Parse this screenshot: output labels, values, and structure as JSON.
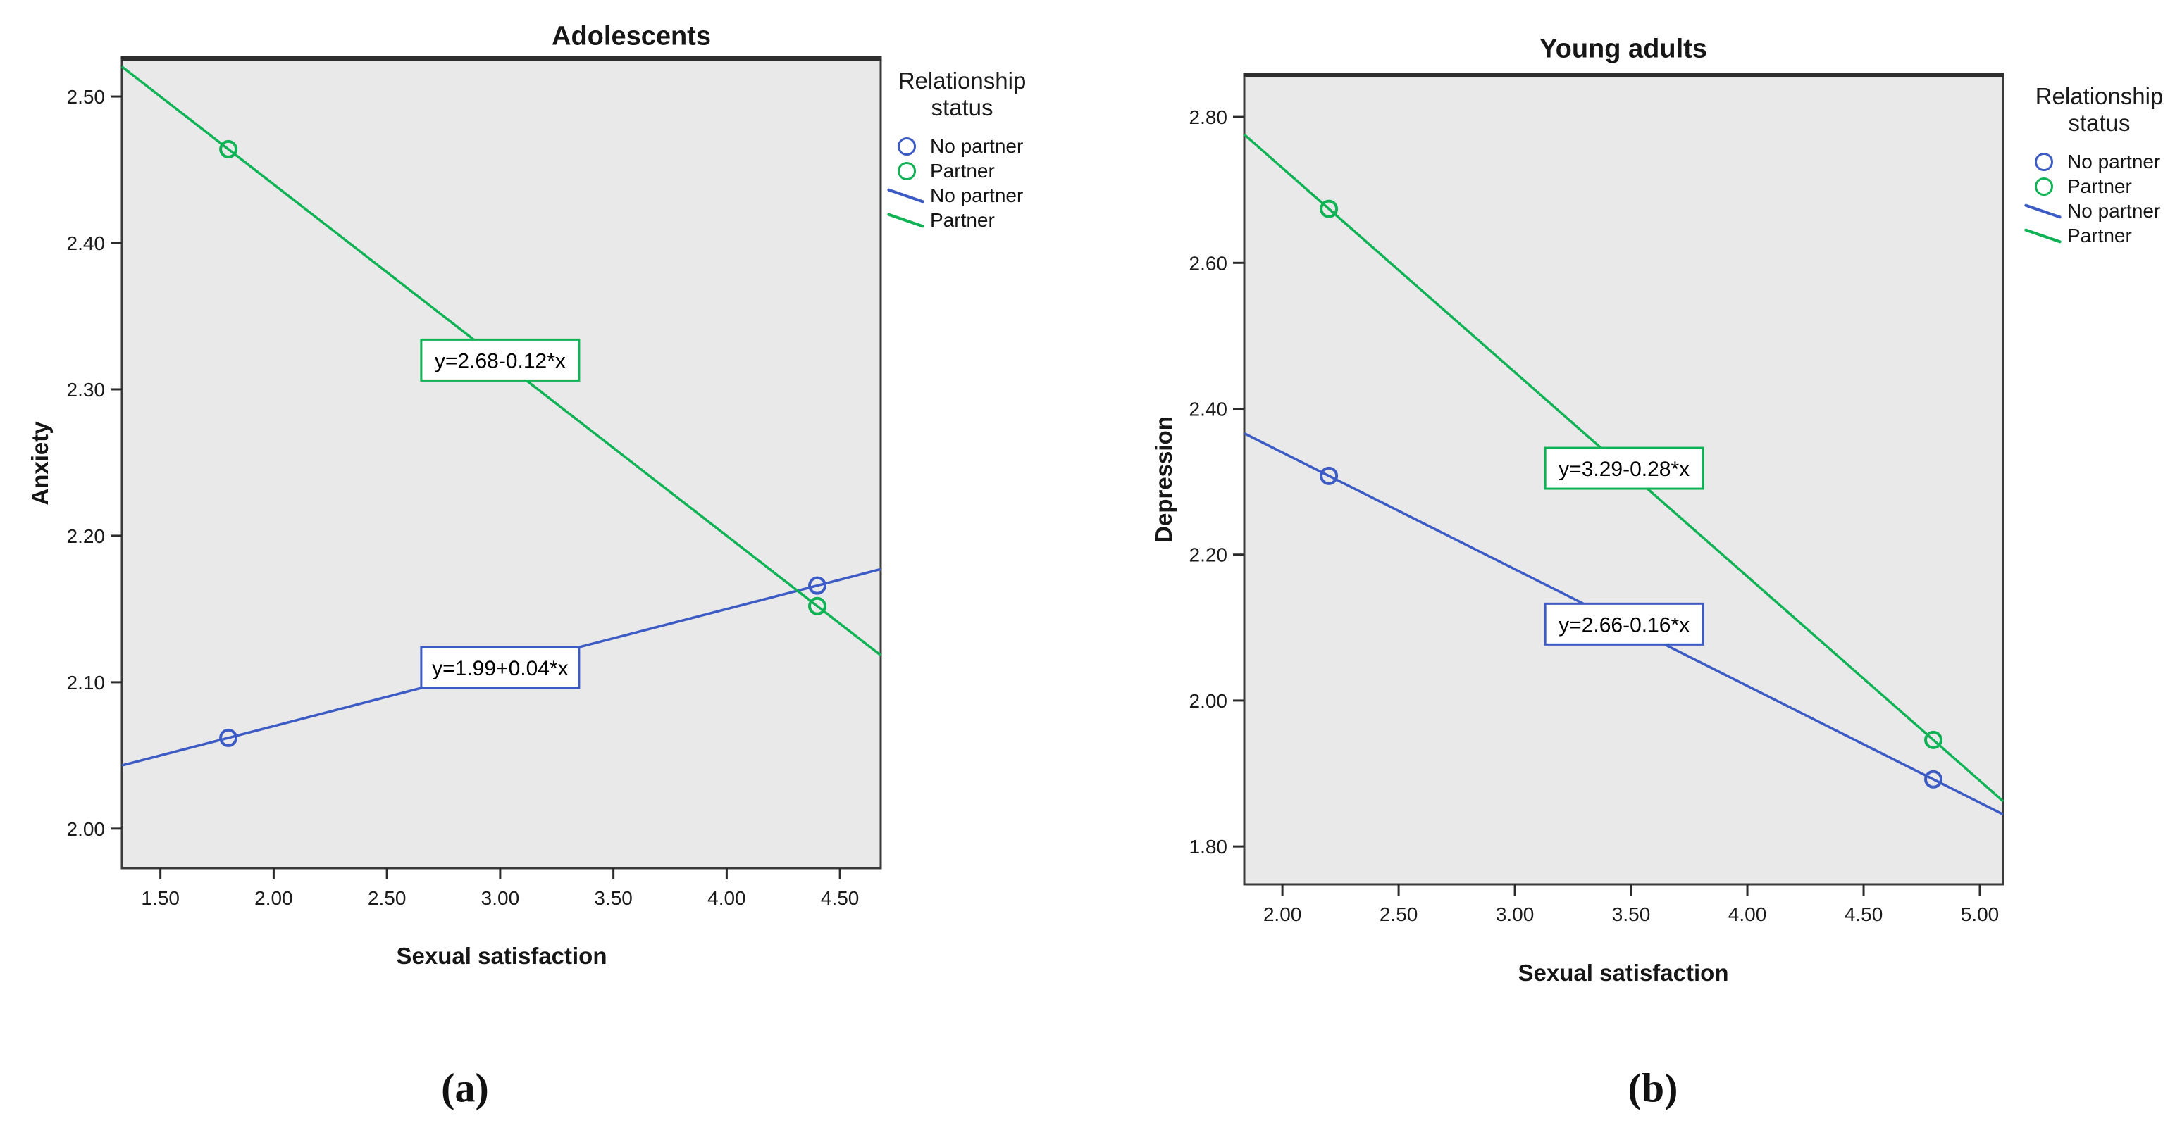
{
  "colors": {
    "blue": "#3C5BC4",
    "green": "#0FB254",
    "frame": "#3b3b3b",
    "frame_top": "#2e2e2e",
    "plot_bg": "#e9e9e9",
    "tick": "#2b2b2b",
    "equation_box_bg": "#ffffff"
  },
  "chart_data": [
    {
      "type": "line",
      "title": "Adolescents",
      "panel_label": "(a)",
      "xlabel": "Sexual satisfaction",
      "ylabel": "Anxiety",
      "x_range": [
        1.33,
        4.68
      ],
      "y_range": [
        1.973,
        2.526
      ],
      "grid": false,
      "x_ticks": [
        {
          "value": 1.5,
          "label": "1.50"
        },
        {
          "value": 2.0,
          "label": "2.00"
        },
        {
          "value": 2.5,
          "label": "2.50"
        },
        {
          "value": 3.0,
          "label": "3.00"
        },
        {
          "value": 3.5,
          "label": "3.50"
        },
        {
          "value": 4.0,
          "label": "4.00"
        },
        {
          "value": 4.5,
          "label": "4.50"
        }
      ],
      "y_ticks": [
        {
          "value": 2.0,
          "label": "2.00"
        },
        {
          "value": 2.1,
          "label": "2.10"
        },
        {
          "value": 2.2,
          "label": "2.20"
        },
        {
          "value": 2.3,
          "label": "2.30"
        },
        {
          "value": 2.4,
          "label": "2.40"
        },
        {
          "value": 2.5,
          "label": "2.50"
        }
      ],
      "series": [
        {
          "name": "No partner",
          "color": "blue",
          "equation_label": "y=1.99+0.04*x",
          "intercept": 1.99,
          "slope": 0.04,
          "equation_label_x": 3.0,
          "points": [
            {
              "x": 1.8,
              "y": 2.062
            },
            {
              "x": 4.4,
              "y": 2.166
            }
          ]
        },
        {
          "name": "Partner",
          "color": "green",
          "equation_label": "y=2.68-0.12*x",
          "intercept": 2.68,
          "slope": -0.12,
          "equation_label_x": 3.0,
          "points": [
            {
              "x": 1.8,
              "y": 2.464
            },
            {
              "x": 4.4,
              "y": 2.152
            }
          ]
        }
      ],
      "legend": {
        "title_lines": [
          "Relationship",
          "status"
        ],
        "items": [
          {
            "type": "circle",
            "color": "blue",
            "label": "No partner"
          },
          {
            "type": "circle",
            "color": "green",
            "label": "Partner"
          },
          {
            "type": "line",
            "color": "blue",
            "label": "No partner"
          },
          {
            "type": "line",
            "color": "green",
            "label": "Partner"
          }
        ]
      }
    },
    {
      "type": "line",
      "title": "Young adults",
      "panel_label": "(b)",
      "xlabel": "Sexual satisfaction",
      "ylabel": "Depression",
      "x_range": [
        1.836,
        5.1
      ],
      "y_range": [
        1.748,
        2.858
      ],
      "grid": false,
      "x_ticks": [
        {
          "value": 2.0,
          "label": "2.00"
        },
        {
          "value": 2.5,
          "label": "2.50"
        },
        {
          "value": 3.0,
          "label": "3.00"
        },
        {
          "value": 3.5,
          "label": "3.50"
        },
        {
          "value": 4.0,
          "label": "4.00"
        },
        {
          "value": 4.5,
          "label": "4.50"
        },
        {
          "value": 5.0,
          "label": "5.00"
        }
      ],
      "y_ticks": [
        {
          "value": 1.8,
          "label": "1.80"
        },
        {
          "value": 2.0,
          "label": "2.00"
        },
        {
          "value": 2.2,
          "label": "2.20"
        },
        {
          "value": 2.4,
          "label": "2.40"
        },
        {
          "value": 2.6,
          "label": "2.60"
        },
        {
          "value": 2.8,
          "label": "2.80"
        }
      ],
      "series": [
        {
          "name": "No partner",
          "color": "blue",
          "equation_label": "y=2.66-0.16*x",
          "intercept": 2.66,
          "slope": -0.16,
          "equation_label_x": 3.47,
          "points": [
            {
              "x": 2.2,
              "y": 2.308
            },
            {
              "x": 4.8,
              "y": 1.892
            }
          ]
        },
        {
          "name": "Partner",
          "color": "green",
          "equation_label": "y=3.29-0.28*x",
          "intercept": 3.29,
          "slope": -0.28,
          "equation_label_x": 3.47,
          "points": [
            {
              "x": 2.2,
              "y": 2.674
            },
            {
              "x": 4.8,
              "y": 1.946
            }
          ]
        }
      ],
      "legend": {
        "title_lines": [
          "Relationship",
          "status"
        ],
        "items": [
          {
            "type": "circle",
            "color": "blue",
            "label": "No partner"
          },
          {
            "type": "circle",
            "color": "green",
            "label": "Partner"
          },
          {
            "type": "line",
            "color": "blue",
            "label": "No partner"
          },
          {
            "type": "line",
            "color": "green",
            "label": "Partner"
          }
        ]
      }
    }
  ]
}
